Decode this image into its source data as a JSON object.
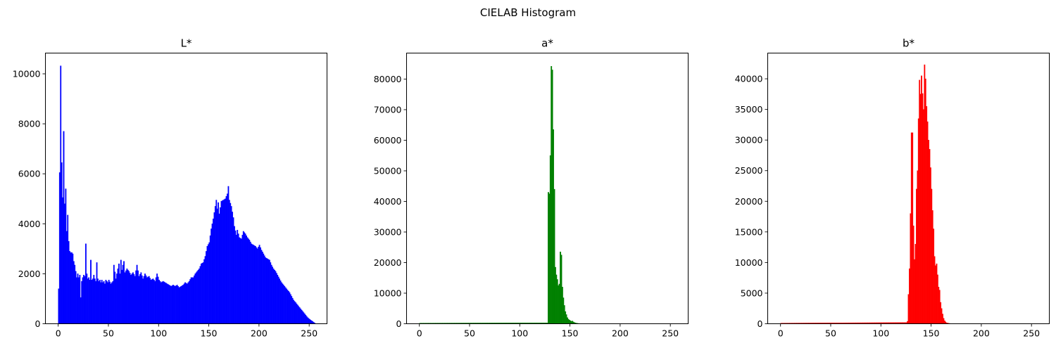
{
  "figure_title": "CIELAB Histogram",
  "chart_data": [
    {
      "type": "bar",
      "title": "L*",
      "color": "#0000ff",
      "xlim": [
        -12.75,
        267.75
      ],
      "ylim": [
        0,
        10830
      ],
      "xticks": [
        0,
        50,
        100,
        150,
        200,
        250
      ],
      "yticks": [
        0,
        2000,
        4000,
        6000,
        8000,
        10000
      ],
      "bins": {
        "start": 0,
        "end": 255,
        "step": 1
      },
      "anchors": [
        [
          0,
          1400
        ],
        [
          1,
          6050
        ],
        [
          2,
          10320
        ],
        [
          3,
          6450
        ],
        [
          4,
          5050
        ],
        [
          5,
          7700
        ],
        [
          6,
          4800
        ],
        [
          7,
          5400
        ],
        [
          8,
          3700
        ],
        [
          9,
          4350
        ],
        [
          10,
          3300
        ],
        [
          11,
          2900
        ],
        [
          12,
          2850
        ],
        [
          13,
          2850
        ],
        [
          14,
          2800
        ],
        [
          15,
          2500
        ],
        [
          16,
          2350
        ],
        [
          17,
          2100
        ],
        [
          18,
          1850
        ],
        [
          19,
          2000
        ],
        [
          20,
          1850
        ],
        [
          21,
          1950
        ],
        [
          22,
          1050
        ],
        [
          23,
          1700
        ],
        [
          24,
          1850
        ],
        [
          25,
          1950
        ],
        [
          26,
          1900
        ],
        [
          27,
          3200
        ],
        [
          28,
          2000
        ],
        [
          29,
          1800
        ],
        [
          30,
          1850
        ],
        [
          31,
          1750
        ],
        [
          32,
          2550
        ],
        [
          33,
          1750
        ],
        [
          34,
          1800
        ],
        [
          35,
          1950
        ],
        [
          36,
          1800
        ],
        [
          37,
          1700
        ],
        [
          38,
          2450
        ],
        [
          39,
          1800
        ],
        [
          40,
          1700
        ],
        [
          41,
          1750
        ],
        [
          42,
          1650
        ],
        [
          43,
          1750
        ],
        [
          44,
          1650
        ],
        [
          45,
          1700
        ],
        [
          46,
          1600
        ],
        [
          47,
          1750
        ],
        [
          48,
          1700
        ],
        [
          49,
          1650
        ],
        [
          50,
          1750
        ],
        [
          52,
          1600
        ],
        [
          54,
          1700
        ],
        [
          55,
          2350
        ],
        [
          57,
          1800
        ],
        [
          60,
          2400
        ],
        [
          61,
          2000
        ],
        [
          62,
          2550
        ],
        [
          63,
          2150
        ],
        [
          64,
          2350
        ],
        [
          65,
          2500
        ],
        [
          66,
          2050
        ],
        [
          68,
          2200
        ],
        [
          70,
          2100
        ],
        [
          72,
          1950
        ],
        [
          74,
          2050
        ],
        [
          76,
          1900
        ],
        [
          78,
          2350
        ],
        [
          80,
          1900
        ],
        [
          82,
          2050
        ],
        [
          84,
          1800
        ],
        [
          86,
          2000
        ],
        [
          88,
          1850
        ],
        [
          90,
          1900
        ],
        [
          92,
          1750
        ],
        [
          94,
          1800
        ],
        [
          96,
          1700
        ],
        [
          98,
          2000
        ],
        [
          100,
          1750
        ],
        [
          102,
          1650
        ],
        [
          104,
          1700
        ],
        [
          106,
          1650
        ],
        [
          108,
          1600
        ],
        [
          110,
          1550
        ],
        [
          112,
          1500
        ],
        [
          114,
          1550
        ],
        [
          116,
          1500
        ],
        [
          118,
          1550
        ],
        [
          120,
          1450
        ],
        [
          122,
          1500
        ],
        [
          124,
          1550
        ],
        [
          126,
          1650
        ],
        [
          128,
          1600
        ],
        [
          130,
          1700
        ],
        [
          132,
          1850
        ],
        [
          134,
          1850
        ],
        [
          136,
          2000
        ],
        [
          138,
          2100
        ],
        [
          140,
          2200
        ],
        [
          142,
          2400
        ],
        [
          144,
          2450
        ],
        [
          146,
          2700
        ],
        [
          148,
          3100
        ],
        [
          150,
          3250
        ],
        [
          152,
          3800
        ],
        [
          154,
          4200
        ],
        [
          155,
          4450
        ],
        [
          157,
          4950
        ],
        [
          158,
          4600
        ],
        [
          159,
          4850
        ],
        [
          160,
          4400
        ],
        [
          162,
          4900
        ],
        [
          164,
          4950
        ],
        [
          166,
          5000
        ],
        [
          168,
          5200
        ],
        [
          169,
          5500
        ],
        [
          170,
          4950
        ],
        [
          172,
          4700
        ],
        [
          174,
          4250
        ],
        [
          175,
          3900
        ],
        [
          177,
          3550
        ],
        [
          178,
          3750
        ],
        [
          180,
          3450
        ],
        [
          182,
          3400
        ],
        [
          184,
          3700
        ],
        [
          186,
          3600
        ],
        [
          188,
          3450
        ],
        [
          190,
          3350
        ],
        [
          192,
          3200
        ],
        [
          194,
          3150
        ],
        [
          196,
          3100
        ],
        [
          198,
          3000
        ],
        [
          200,
          3150
        ],
        [
          202,
          2950
        ],
        [
          204,
          2800
        ],
        [
          206,
          2650
        ],
        [
          208,
          2600
        ],
        [
          210,
          2550
        ],
        [
          212,
          2350
        ],
        [
          214,
          2200
        ],
        [
          216,
          2100
        ],
        [
          218,
          1950
        ],
        [
          220,
          1800
        ],
        [
          222,
          1650
        ],
        [
          224,
          1550
        ],
        [
          226,
          1450
        ],
        [
          228,
          1350
        ],
        [
          230,
          1250
        ],
        [
          232,
          1100
        ],
        [
          234,
          950
        ],
        [
          236,
          850
        ],
        [
          238,
          750
        ],
        [
          240,
          650
        ],
        [
          242,
          550
        ],
        [
          244,
          450
        ],
        [
          246,
          350
        ],
        [
          248,
          250
        ],
        [
          250,
          180
        ],
        [
          252,
          120
        ],
        [
          254,
          60
        ],
        [
          255,
          30
        ]
      ]
    },
    {
      "type": "bar",
      "title": "a*",
      "color": "#008000",
      "xlim": [
        -12.75,
        267.75
      ],
      "ylim": [
        0,
        88500
      ],
      "xticks": [
        0,
        50,
        100,
        150,
        200,
        250
      ],
      "yticks": [
        0,
        10000,
        20000,
        30000,
        40000,
        50000,
        60000,
        70000,
        80000
      ],
      "bins": {
        "start": 0,
        "end": 255,
        "step": 1
      },
      "anchors": [
        [
          0,
          200
        ],
        [
          126,
          300
        ],
        [
          127,
          300
        ],
        [
          128,
          43000
        ],
        [
          129,
          42500
        ],
        [
          130,
          55000
        ],
        [
          131,
          84200
        ],
        [
          132,
          83000
        ],
        [
          133,
          63500
        ],
        [
          134,
          44000
        ],
        [
          135,
          18500
        ],
        [
          136,
          16000
        ],
        [
          137,
          14500
        ],
        [
          138,
          12500
        ],
        [
          139,
          13000
        ],
        [
          140,
          23500
        ],
        [
          141,
          22500
        ],
        [
          142,
          12000
        ],
        [
          143,
          8500
        ],
        [
          144,
          6000
        ],
        [
          145,
          4000
        ],
        [
          146,
          3000
        ],
        [
          147,
          2000
        ],
        [
          148,
          1500
        ],
        [
          149,
          1200
        ],
        [
          150,
          1000
        ],
        [
          151,
          800
        ],
        [
          152,
          900
        ],
        [
          153,
          600
        ],
        [
          154,
          400
        ],
        [
          155,
          300
        ],
        [
          156,
          200
        ],
        [
          158,
          100
        ],
        [
          160,
          50
        ],
        [
          165,
          0
        ],
        [
          255,
          0
        ]
      ]
    },
    {
      "type": "bar",
      "title": "b*",
      "color": "#ff0000",
      "xlim": [
        -12.75,
        267.75
      ],
      "ylim": [
        0,
        44200
      ],
      "xticks": [
        0,
        50,
        100,
        150,
        200,
        250
      ],
      "yticks": [
        0,
        5000,
        10000,
        15000,
        20000,
        25000,
        30000,
        35000,
        40000
      ],
      "bins": {
        "start": 0,
        "end": 255,
        "step": 1
      },
      "anchors": [
        [
          0,
          100
        ],
        [
          125,
          200
        ],
        [
          126,
          400
        ],
        [
          127,
          4800
        ],
        [
          128,
          9000
        ],
        [
          129,
          18000
        ],
        [
          130,
          31200
        ],
        [
          131,
          31200
        ],
        [
          132,
          16000
        ],
        [
          133,
          10500
        ],
        [
          134,
          13000
        ],
        [
          135,
          22000
        ],
        [
          136,
          25000
        ],
        [
          137,
          33500
        ],
        [
          138,
          39800
        ],
        [
          139,
          37500
        ],
        [
          140,
          40500
        ],
        [
          141,
          37600
        ],
        [
          142,
          35000
        ],
        [
          143,
          42300
        ],
        [
          144,
          40000
        ],
        [
          145,
          35500
        ],
        [
          146,
          33000
        ],
        [
          147,
          30000
        ],
        [
          148,
          28500
        ],
        [
          149,
          25500
        ],
        [
          150,
          22000
        ],
        [
          151,
          18500
        ],
        [
          152,
          15500
        ],
        [
          153,
          11000
        ],
        [
          154,
          9500
        ],
        [
          155,
          9800
        ],
        [
          156,
          8000
        ],
        [
          157,
          6000
        ],
        [
          158,
          5500
        ],
        [
          159,
          3500
        ],
        [
          160,
          2500
        ],
        [
          161,
          1600
        ],
        [
          162,
          900
        ],
        [
          163,
          500
        ],
        [
          164,
          300
        ],
        [
          165,
          150
        ],
        [
          168,
          50
        ],
        [
          170,
          0
        ],
        [
          255,
          0
        ]
      ]
    }
  ]
}
